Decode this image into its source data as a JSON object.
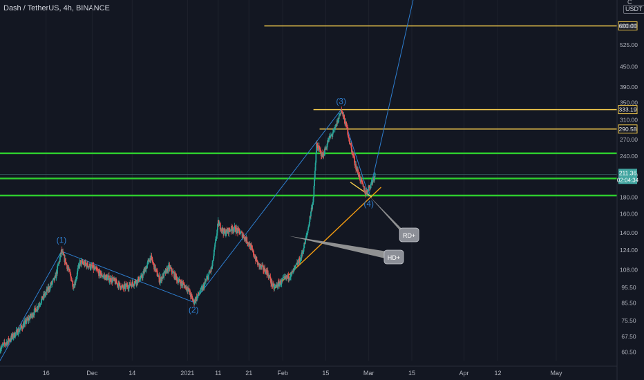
{
  "header": {
    "title": "Dash / TetherUS, 4h, BINANCE",
    "currency": "USDT",
    "scale_letter": "C"
  },
  "colors": {
    "background": "#131722",
    "up": "#26a69a",
    "down": "#ef5350",
    "text": "#b2b5be",
    "support_green": "#2ecc2e",
    "level_yellow": "#f2c94c",
    "trend_orange": "#f39c12",
    "wave_blue": "#2e7fd1",
    "price_tag": "#42a5a0",
    "arrow_grey": "#9e9e9e"
  },
  "chart_data": {
    "type": "candlestick",
    "symbol": "Dash / TetherUS",
    "interval": "4h",
    "exchange": "BINANCE",
    "y_scale": "log",
    "ylim": [
      57,
      720
    ],
    "x_range": [
      "2020-11-01",
      "2021-05-10"
    ],
    "x_tick_labels": [
      {
        "date": "2020-11-16",
        "label": "16"
      },
      {
        "date": "2020-12-01",
        "label": "Dec"
      },
      {
        "date": "2020-12-14",
        "label": "14"
      },
      {
        "date": "2021-01-01",
        "label": "2021"
      },
      {
        "date": "2021-01-11",
        "label": "11"
      },
      {
        "date": "2021-01-21",
        "label": "21"
      },
      {
        "date": "2021-02-01",
        "label": "Feb"
      },
      {
        "date": "2021-02-15",
        "label": "15"
      },
      {
        "date": "2021-03-01",
        "label": "Mar"
      },
      {
        "date": "2021-03-15",
        "label": "15"
      },
      {
        "date": "2021-04-01",
        "label": "Apr"
      },
      {
        "date": "2021-04-12",
        "label": "12"
      },
      {
        "date": "2021-05-01",
        "label": "May"
      }
    ],
    "y_tick_labels": [
      "600.00",
      "525.00",
      "450.00",
      "390.00",
      "350.00",
      "310.00",
      "270.00",
      "240.00",
      "210.00",
      "180.00",
      "160.00",
      "140.00",
      "124.00",
      "108.00",
      "95.50",
      "85.50",
      "75.50",
      "67.50",
      "60.50"
    ],
    "price_path": [
      [
        "2020-11-01",
        62
      ],
      [
        "2020-11-04",
        66
      ],
      [
        "2020-11-08",
        72
      ],
      [
        "2020-11-12",
        80
      ],
      [
        "2020-11-16",
        92
      ],
      [
        "2020-11-19",
        102
      ],
      [
        "2020-11-21",
        123
      ],
      [
        "2020-11-23",
        110
      ],
      [
        "2020-11-25",
        96
      ],
      [
        "2020-11-27",
        114
      ],
      [
        "2020-12-01",
        110
      ],
      [
        "2020-12-04",
        104
      ],
      [
        "2020-12-08",
        100
      ],
      [
        "2020-12-11",
        95
      ],
      [
        "2020-12-14",
        98
      ],
      [
        "2020-12-17",
        102
      ],
      [
        "2020-12-20",
        118
      ],
      [
        "2020-12-23",
        100
      ],
      [
        "2020-12-26",
        110
      ],
      [
        "2020-12-29",
        100
      ],
      [
        "2021-01-01",
        95
      ],
      [
        "2021-01-03",
        86
      ],
      [
        "2021-01-06",
        95
      ],
      [
        "2021-01-09",
        110
      ],
      [
        "2021-01-11",
        150
      ],
      [
        "2021-01-13",
        140
      ],
      [
        "2021-01-16",
        145
      ],
      [
        "2021-01-19",
        138
      ],
      [
        "2021-01-21",
        130
      ],
      [
        "2021-01-24",
        112
      ],
      [
        "2021-01-27",
        106
      ],
      [
        "2021-01-29",
        95
      ],
      [
        "2021-02-01",
        100
      ],
      [
        "2021-02-04",
        105
      ],
      [
        "2021-02-07",
        118
      ],
      [
        "2021-02-09",
        140
      ],
      [
        "2021-02-11",
        180
      ],
      [
        "2021-02-12",
        260
      ],
      [
        "2021-02-14",
        240
      ],
      [
        "2021-02-16",
        270
      ],
      [
        "2021-02-18",
        290
      ],
      [
        "2021-02-20",
        333
      ],
      [
        "2021-02-22",
        290
      ],
      [
        "2021-02-23",
        260
      ],
      [
        "2021-02-25",
        220
      ],
      [
        "2021-02-27",
        195
      ],
      [
        "2021-02-28",
        185
      ],
      [
        "2021-03-02",
        200
      ],
      [
        "2021-03-03",
        211.36
      ]
    ],
    "horizontal_levels": [
      {
        "price": 600.0,
        "label": "600.00",
        "color": "yellow"
      },
      {
        "price": 333.19,
        "label": "333.19",
        "color": "yellow"
      },
      {
        "price": 290.58,
        "label": "290.58",
        "color": "yellow"
      },
      {
        "price": 245,
        "label": "",
        "color": "green"
      },
      {
        "price": 205.27,
        "label": "205.27",
        "color": "green"
      },
      {
        "price": 182,
        "label": "",
        "color": "green"
      }
    ],
    "last_price": {
      "value": "211.36",
      "countdown": "02:04:34"
    },
    "wave_labels": [
      {
        "date": "2020-11-21",
        "price": 123,
        "text": "(1)"
      },
      {
        "date": "2021-01-03",
        "price": 86,
        "text": "(2)"
      },
      {
        "date": "2021-02-20",
        "price": 333,
        "text": "(3)"
      },
      {
        "date": "2021-03-01",
        "price": 182,
        "text": "(4)"
      }
    ],
    "annotations": [
      {
        "text": "RD+"
      },
      {
        "text": "HD+"
      }
    ]
  }
}
